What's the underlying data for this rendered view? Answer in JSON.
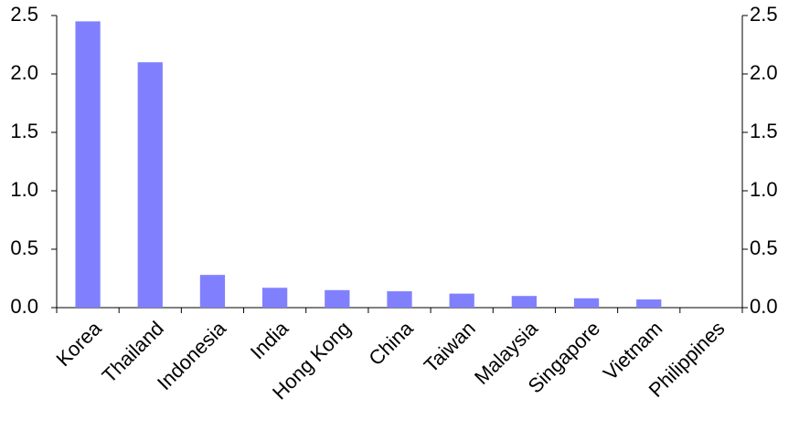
{
  "chart_data": {
    "type": "bar",
    "categories": [
      "Korea",
      "Thailand",
      "Indonesia",
      "India",
      "Hong Kong",
      "China",
      "Taiwan",
      "Malaysia",
      "Singapore",
      "Vietnam",
      "Philippines"
    ],
    "values": [
      2.45,
      2.1,
      0.28,
      0.17,
      0.15,
      0.14,
      0.12,
      0.1,
      0.08,
      0.07,
      0
    ],
    "color": "#8080ff",
    "ylim": [
      0,
      2.5
    ],
    "yticks": [
      {
        "value": 0,
        "label": "0.0"
      },
      {
        "value": 0.5,
        "label": "0.5"
      },
      {
        "value": 1,
        "label": "1.0"
      },
      {
        "value": 1.5,
        "label": "1.5"
      },
      {
        "value": 2,
        "label": "2.0"
      },
      {
        "value": 2.5,
        "label": "2.5"
      }
    ],
    "y2lim": [
      0,
      2.5
    ],
    "y2ticks": [
      {
        "value": 0,
        "label": "0.0"
      },
      {
        "value": 0.5,
        "label": "0.5"
      },
      {
        "value": 1,
        "label": "1.0"
      },
      {
        "value": 1.5,
        "label": "1.5"
      },
      {
        "value": 2,
        "label": "2.0"
      },
      {
        "value": 2.5,
        "label": "2.5"
      }
    ],
    "grid": false
  }
}
